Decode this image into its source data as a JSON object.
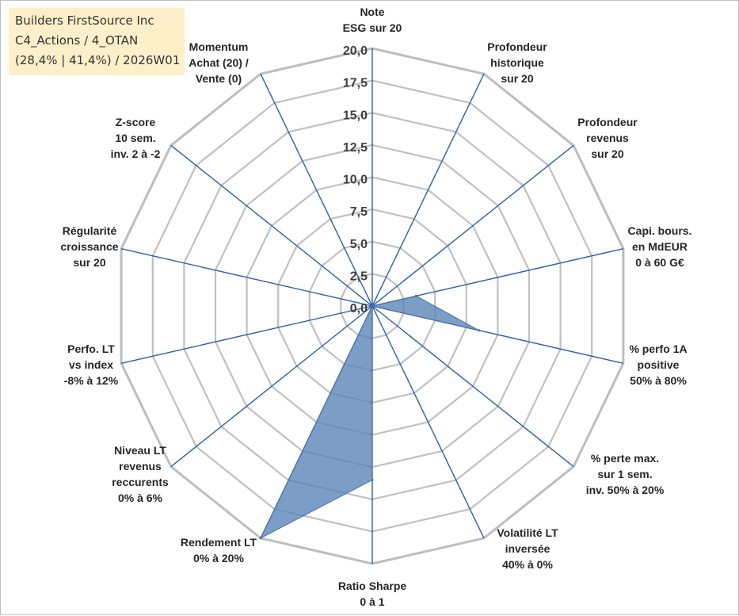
{
  "title_box": {
    "line1": "Builders FirstSource Inc",
    "line2": "C4_Actions / 4_OTAN",
    "line3": "(28,4% | 41,4%) / 2026W01"
  },
  "chart_data": {
    "type": "radar",
    "r_max": 20,
    "ticks": [
      "0,0",
      "2,5",
      "5,0",
      "7,5",
      "10,0",
      "12,5",
      "15,0",
      "17,5",
      "20,0"
    ],
    "tick_values": [
      0,
      2.5,
      5,
      7.5,
      10,
      12.5,
      15,
      17.5,
      20
    ],
    "categories": [
      [
        "Note",
        "ESG sur 20"
      ],
      [
        "Profondeur",
        "historique",
        "sur 20"
      ],
      [
        "Profondeur",
        "revenus",
        "sur 20"
      ],
      [
        "Capi. bours.",
        "en MdEUR",
        "0 à 60 G€"
      ],
      [
        "% perfo 1A",
        "positive",
        "50% à 80%"
      ],
      [
        "% perte max.",
        "sur 1 sem.",
        "inv. 50% à 20%"
      ],
      [
        "Volatilité LT",
        "inversée",
        "40% à 0%"
      ],
      [
        "Ratio Sharpe",
        "0 à 1"
      ],
      [
        "Rendement LT",
        "0% à 20%"
      ],
      [
        "Niveau LT",
        "revenus",
        "reccurents",
        "0% à 6%"
      ],
      [
        "Perfo. LT",
        "vs index",
        "-8% à 12%"
      ],
      [
        "Régularité",
        "croissance",
        "sur 20"
      ],
      [
        "Z-score",
        "10 sem.",
        "inv. 2 à -2"
      ],
      [
        "Momentum",
        "Achat (20) /",
        "Vente (0)"
      ]
    ],
    "values": [
      0,
      0,
      0,
      3.5,
      8.5,
      0,
      0,
      13.5,
      20,
      0,
      0,
      0,
      0,
      0
    ],
    "colors": {
      "fill": "#5b84b8",
      "fill_opacity": 0.8,
      "series_edge": "#4a72a6",
      "spoke": "#2e5fa8",
      "ring": "#c0c0c0",
      "ring_outer": "#bdbdbd"
    }
  }
}
